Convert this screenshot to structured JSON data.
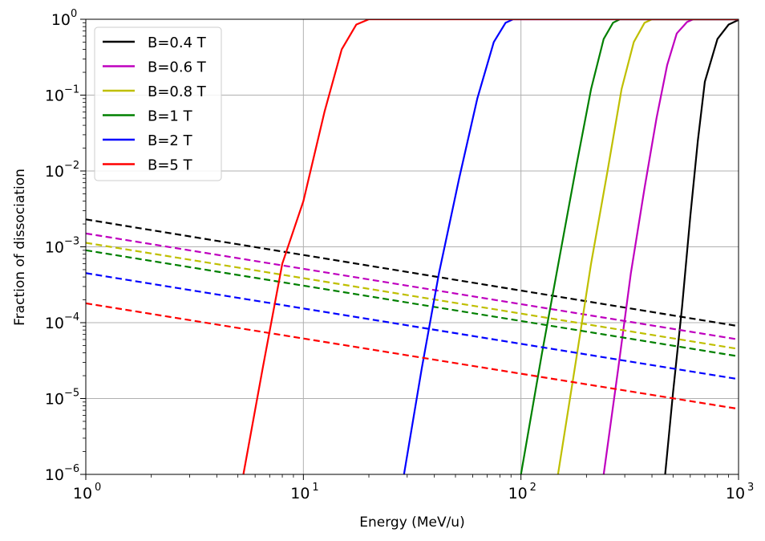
{
  "chart_data": {
    "type": "line",
    "xlabel": "Energy (MeV/u)",
    "ylabel": "Fraction of dissociation",
    "xscale": "log",
    "yscale": "log",
    "xlim": [
      1,
      1000
    ],
    "ylim": [
      1e-06,
      1
    ],
    "grid": true,
    "legend_position": "top-left",
    "x_ticks": [
      {
        "value": 1,
        "base": "10",
        "exp": "0"
      },
      {
        "value": 10,
        "base": "10",
        "exp": "1"
      },
      {
        "value": 100,
        "base": "10",
        "exp": "2"
      },
      {
        "value": 1000,
        "base": "10",
        "exp": "3"
      }
    ],
    "y_ticks": [
      {
        "value": 1,
        "base": "10",
        "exp": "0"
      },
      {
        "value": 0.1,
        "base": "10",
        "exp": "−1"
      },
      {
        "value": 0.01,
        "base": "10",
        "exp": "−2"
      },
      {
        "value": 0.001,
        "base": "10",
        "exp": "−3"
      },
      {
        "value": 0.0001,
        "base": "10",
        "exp": "−4"
      },
      {
        "value": 1e-05,
        "base": "10",
        "exp": "−5"
      },
      {
        "value": 1e-06,
        "base": "10",
        "exp": "−6"
      }
    ],
    "series": [
      {
        "name": "B=0.4 T",
        "color": "#000000",
        "solid": [
          [
            460,
            1e-06
          ],
          [
            500,
            1.2e-05
          ],
          [
            550,
            0.00016
          ],
          [
            600,
            0.0025
          ],
          [
            650,
            0.025
          ],
          [
            700,
            0.15
          ],
          [
            800,
            0.55
          ],
          [
            900,
            0.85
          ],
          [
            1000,
            0.98
          ]
        ],
        "dashed": [
          [
            1,
            0.0023
          ],
          [
            1000,
            9e-05
          ]
        ]
      },
      {
        "name": "B=0.6 T",
        "color": "#bf00bf",
        "solid": [
          [
            240,
            1e-06
          ],
          [
            280,
            2.5e-05
          ],
          [
            320,
            0.00045
          ],
          [
            370,
            0.006
          ],
          [
            420,
            0.05
          ],
          [
            470,
            0.25
          ],
          [
            520,
            0.65
          ],
          [
            580,
            0.92
          ],
          [
            620,
            1
          ],
          [
            1000,
            1
          ]
        ],
        "dashed": [
          [
            1,
            0.0015
          ],
          [
            1000,
            6e-05
          ]
        ]
      },
      {
        "name": "B=0.8 T",
        "color": "#bfbf00",
        "solid": [
          [
            148,
            1e-06
          ],
          [
            180,
            3.5e-05
          ],
          [
            210,
            0.0006
          ],
          [
            250,
            0.01
          ],
          [
            290,
            0.12
          ],
          [
            330,
            0.5
          ],
          [
            370,
            0.9
          ],
          [
            400,
            1
          ],
          [
            1000,
            1
          ]
        ],
        "dashed": [
          [
            1,
            0.00113
          ],
          [
            1000,
            4.5e-05
          ]
        ]
      },
      {
        "name": "B=1 T",
        "color": "#008000",
        "solid": [
          [
            100,
            1e-06
          ],
          [
            125,
            4e-05
          ],
          [
            150,
            0.0007
          ],
          [
            180,
            0.012
          ],
          [
            210,
            0.12
          ],
          [
            240,
            0.55
          ],
          [
            265,
            0.9
          ],
          [
            285,
            1
          ],
          [
            1000,
            1
          ]
        ],
        "dashed": [
          [
            1,
            0.0009
          ],
          [
            1000,
            3.6e-05
          ]
        ]
      },
      {
        "name": "B=2 T",
        "color": "#0000ff",
        "solid": [
          [
            29,
            1e-06
          ],
          [
            35,
            2.5e-05
          ],
          [
            42,
            0.00045
          ],
          [
            52,
            0.008
          ],
          [
            63,
            0.09
          ],
          [
            75,
            0.5
          ],
          [
            85,
            0.9
          ],
          [
            92,
            1
          ],
          [
            1000,
            1
          ]
        ],
        "dashed": [
          [
            1,
            0.00045
          ],
          [
            1000,
            1.8e-05
          ]
        ]
      },
      {
        "name": "B=5 T",
        "color": "#ff0000",
        "solid": [
          [
            5.3,
            1e-06
          ],
          [
            6.5,
            2.5e-05
          ],
          [
            8,
            0.0006
          ],
          [
            10,
            0.004
          ],
          [
            12.5,
            0.06
          ],
          [
            15,
            0.4
          ],
          [
            17.5,
            0.85
          ],
          [
            20,
            1
          ],
          [
            1000,
            1
          ]
        ],
        "dashed": [
          [
            1,
            0.00018
          ],
          [
            1000,
            7.3e-06
          ]
        ]
      }
    ]
  }
}
